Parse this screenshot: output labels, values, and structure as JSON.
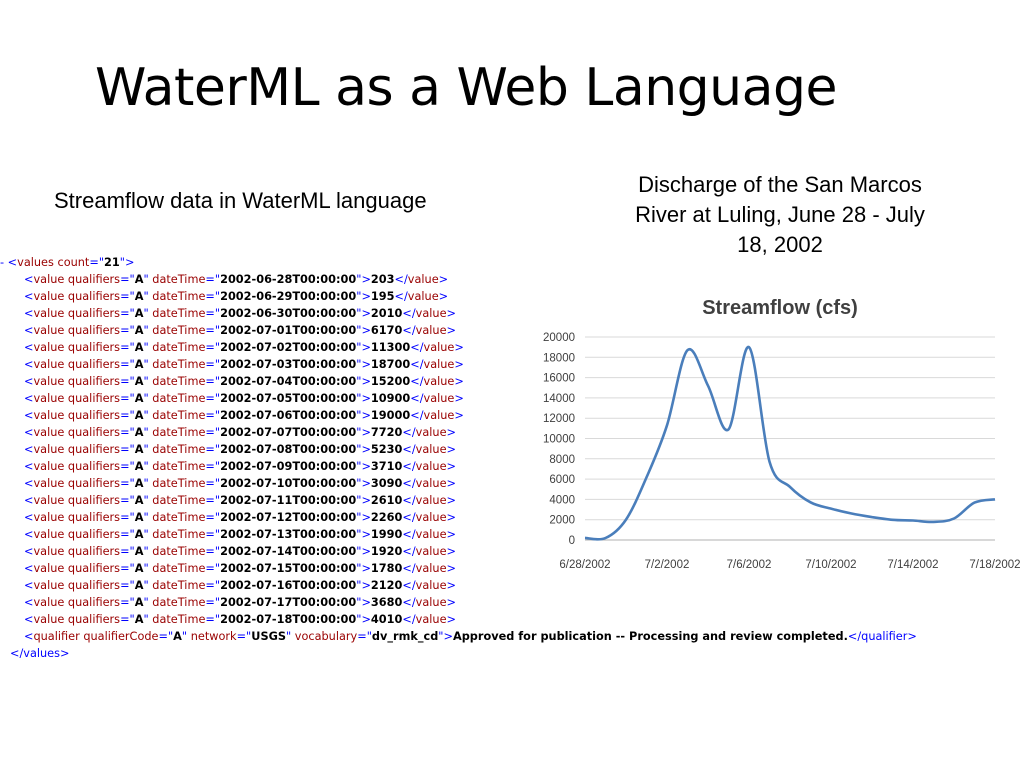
{
  "slide": {
    "title": "WaterML as a Web Language",
    "left_caption": "Streamflow data in WaterML language",
    "right_caption": "Discharge of the San Marcos River at Luling, June 28 - July 18, 2002"
  },
  "xml": {
    "root_marker": "-",
    "root_tag": "values",
    "root_attr": "count",
    "root_count": "21",
    "child_tag": "value",
    "qualifier_attr": "qualifiers",
    "datetime_attr": "dateTime",
    "entries": [
      {
        "qualifier": "A",
        "dateTime": "2002-06-28T00:00:00",
        "value": "203"
      },
      {
        "qualifier": "A",
        "dateTime": "2002-06-29T00:00:00",
        "value": "195"
      },
      {
        "qualifier": "A",
        "dateTime": "2002-06-30T00:00:00",
        "value": "2010"
      },
      {
        "qualifier": "A",
        "dateTime": "2002-07-01T00:00:00",
        "value": "6170"
      },
      {
        "qualifier": "A",
        "dateTime": "2002-07-02T00:00:00",
        "value": "11300"
      },
      {
        "qualifier": "A",
        "dateTime": "2002-07-03T00:00:00",
        "value": "18700"
      },
      {
        "qualifier": "A",
        "dateTime": "2002-07-04T00:00:00",
        "value": "15200"
      },
      {
        "qualifier": "A",
        "dateTime": "2002-07-05T00:00:00",
        "value": "10900"
      },
      {
        "qualifier": "A",
        "dateTime": "2002-07-06T00:00:00",
        "value": "19000"
      },
      {
        "qualifier": "A",
        "dateTime": "2002-07-07T00:00:00",
        "value": "7720"
      },
      {
        "qualifier": "A",
        "dateTime": "2002-07-08T00:00:00",
        "value": "5230"
      },
      {
        "qualifier": "A",
        "dateTime": "2002-07-09T00:00:00",
        "value": "3710"
      },
      {
        "qualifier": "A",
        "dateTime": "2002-07-10T00:00:00",
        "value": "3090"
      },
      {
        "qualifier": "A",
        "dateTime": "2002-07-11T00:00:00",
        "value": "2610"
      },
      {
        "qualifier": "A",
        "dateTime": "2002-07-12T00:00:00",
        "value": "2260"
      },
      {
        "qualifier": "A",
        "dateTime": "2002-07-13T00:00:00",
        "value": "1990"
      },
      {
        "qualifier": "A",
        "dateTime": "2002-07-14T00:00:00",
        "value": "1920"
      },
      {
        "qualifier": "A",
        "dateTime": "2002-07-15T00:00:00",
        "value": "1780"
      },
      {
        "qualifier": "A",
        "dateTime": "2002-07-16T00:00:00",
        "value": "2120"
      },
      {
        "qualifier": "A",
        "dateTime": "2002-07-17T00:00:00",
        "value": "3680"
      },
      {
        "qualifier": "A",
        "dateTime": "2002-07-18T00:00:00",
        "value": "4010"
      }
    ],
    "qualifier_line": {
      "tag": "qualifier",
      "code_attr": "qualifierCode",
      "code": "A",
      "network_attr": "network",
      "network": "USGS",
      "vocab_attr": "vocabulary",
      "vocabulary": "dv_rmk_cd",
      "text": "Approved for publication -- Processing and review completed.",
      "close": "</qualifier>"
    },
    "closing_tag": "</values>"
  },
  "chart_data": {
    "type": "line",
    "title": "Streamflow (cfs)",
    "x_tick_labels": [
      "6/28/2002",
      "7/2/2002",
      "7/6/2002",
      "7/10/2002",
      "7/14/2002",
      "7/18/2002"
    ],
    "x_dates": [
      "2002-06-28",
      "2002-06-29",
      "2002-06-30",
      "2002-07-01",
      "2002-07-02",
      "2002-07-03",
      "2002-07-04",
      "2002-07-05",
      "2002-07-06",
      "2002-07-07",
      "2002-07-08",
      "2002-07-09",
      "2002-07-10",
      "2002-07-11",
      "2002-07-12",
      "2002-07-13",
      "2002-07-14",
      "2002-07-15",
      "2002-07-16",
      "2002-07-17",
      "2002-07-18"
    ],
    "values": [
      203,
      195,
      2010,
      6170,
      11300,
      18700,
      15200,
      10900,
      19000,
      7720,
      5230,
      3710,
      3090,
      2610,
      2260,
      1990,
      1920,
      1780,
      2120,
      3680,
      4010
    ],
    "y_ticks": [
      0,
      2000,
      4000,
      6000,
      8000,
      10000,
      12000,
      14000,
      16000,
      18000,
      20000
    ],
    "ylim": [
      0,
      20000
    ],
    "grid": "horizontal",
    "legend": "none",
    "line_color": "#4a7ebb",
    "grid_color": "#d9d9d9"
  }
}
